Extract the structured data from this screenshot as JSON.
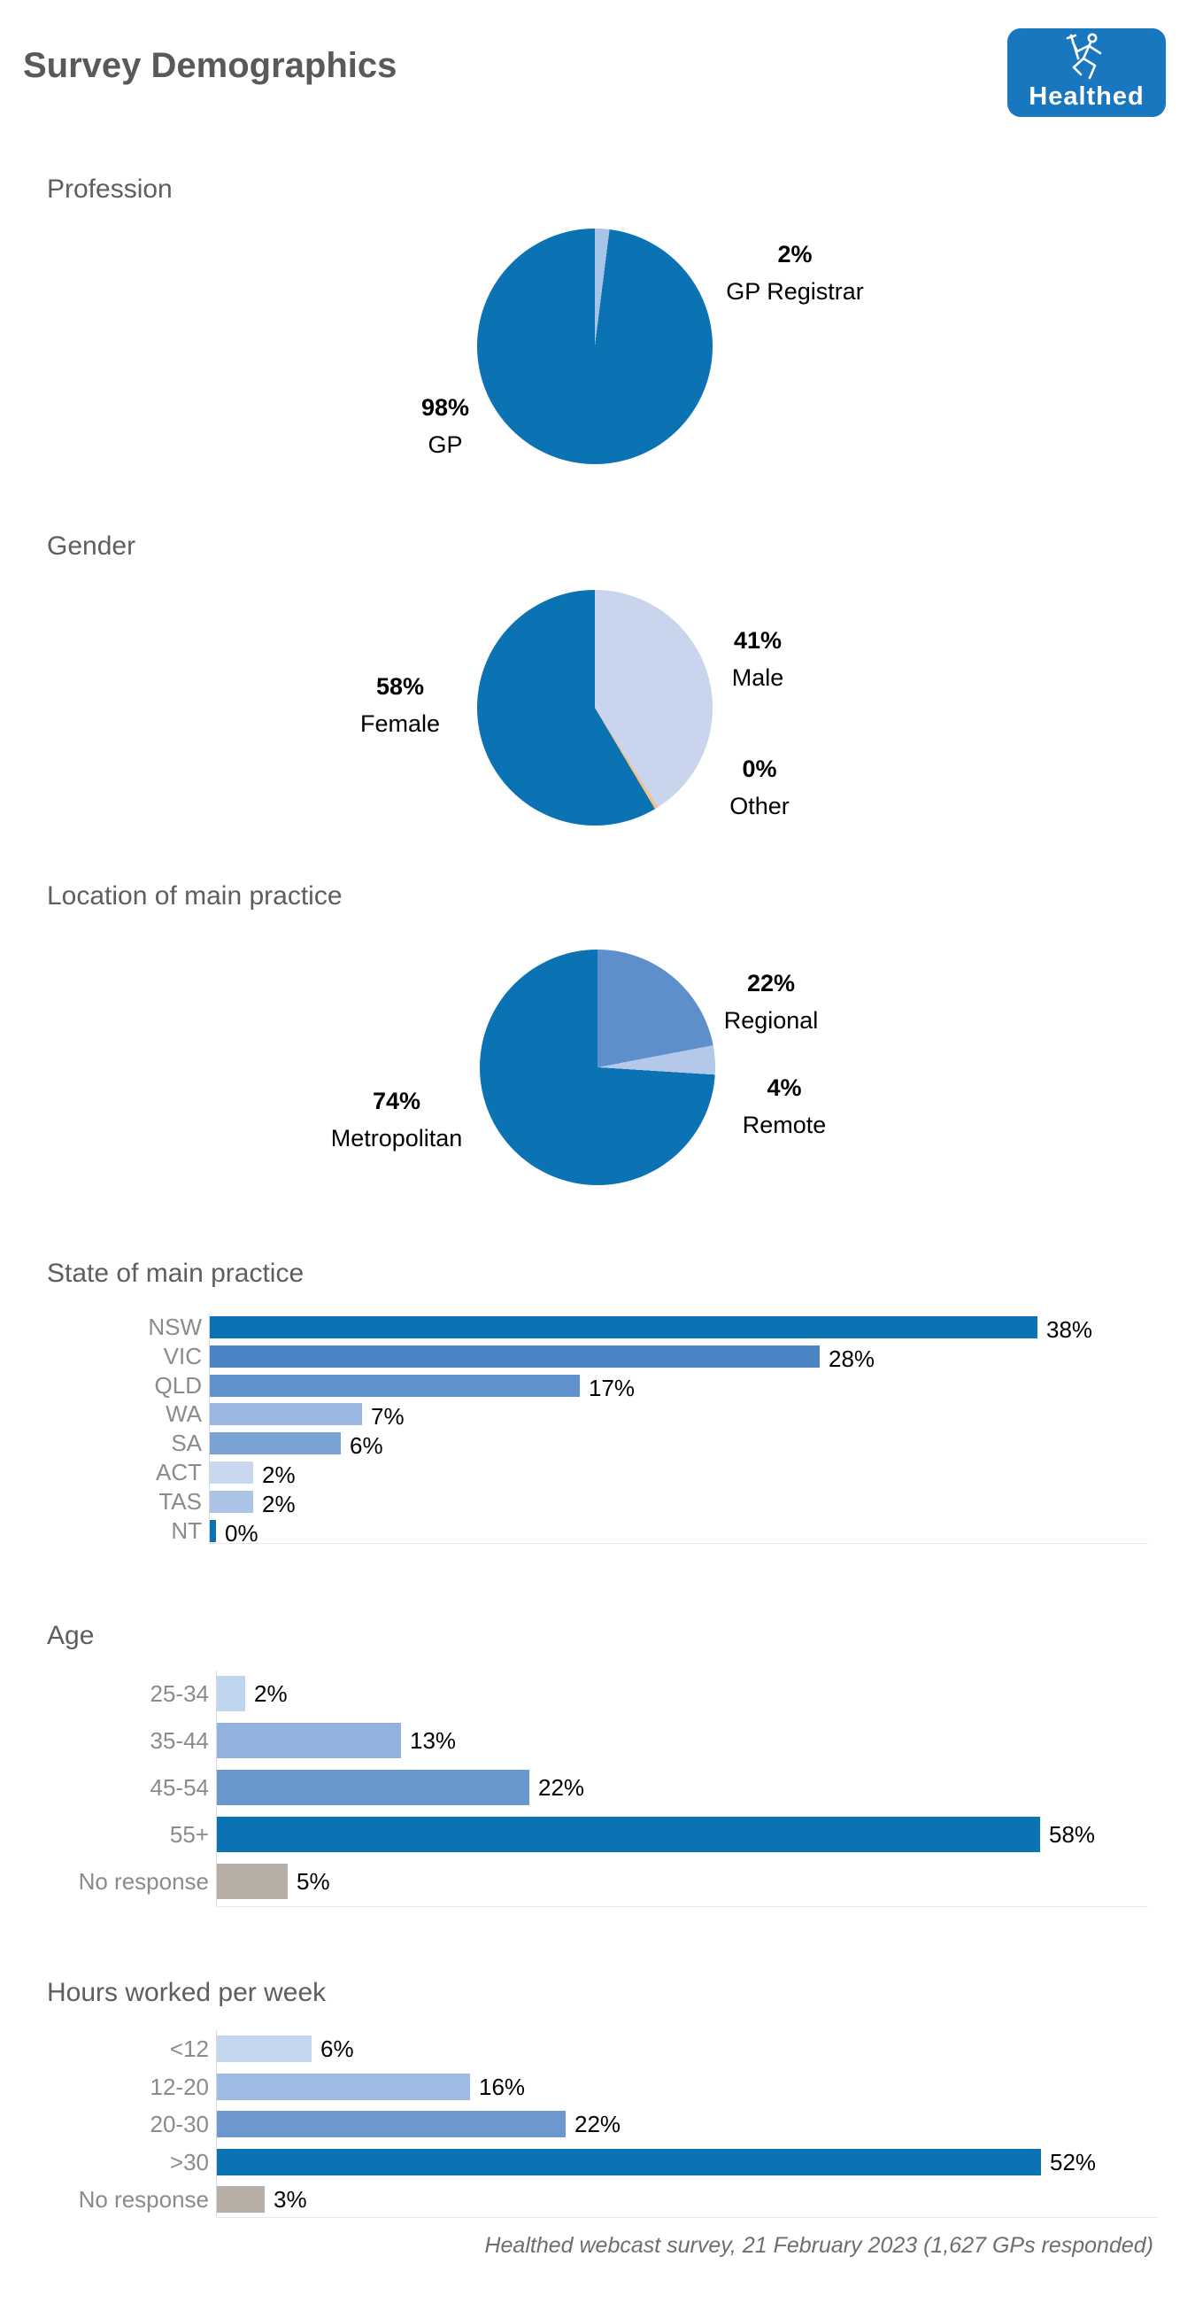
{
  "title": "Survey Demographics",
  "logo": {
    "brand": "Healthed"
  },
  "footer": {
    "text": "Healthed webcast survey, 21 February 2023 (1,627 GPs responded)"
  },
  "palette": {
    "dark_blue": "#0b72b4",
    "heading_gray": "#5e5e5e",
    "label_gray": "#8b8b8b",
    "no_response_gray": "#b7aea6",
    "other_orange": "#f5c184"
  },
  "chart_data": [
    {
      "type": "pie",
      "title": "Profession",
      "slices": [
        {
          "label": "GP Registrar",
          "value": 2,
          "pct": "2%",
          "color": "#a6c3e8"
        },
        {
          "label": "GP",
          "value": 98,
          "pct": "98%",
          "color": "#0b72b4"
        }
      ]
    },
    {
      "type": "pie",
      "title": "Gender",
      "slices": [
        {
          "label": "Male",
          "value": 41,
          "pct": "41%",
          "color": "#c8d5ec"
        },
        {
          "label": "Other",
          "value": 0,
          "pct": "0%",
          "color": "#f5c184"
        },
        {
          "label": "Female",
          "value": 58,
          "pct": "58%",
          "color": "#0b72b4"
        }
      ]
    },
    {
      "type": "pie",
      "title": "Location of main practice",
      "slices": [
        {
          "label": "Regional",
          "value": 22,
          "pct": "22%",
          "color": "#5e8fca"
        },
        {
          "label": "Remote",
          "value": 4,
          "pct": "4%",
          "color": "#b4c8ea"
        },
        {
          "label": "Metropolitan",
          "value": 74,
          "pct": "74%",
          "color": "#0b72b4"
        }
      ]
    },
    {
      "type": "bar",
      "title": "State of main practice",
      "xlim": [
        0,
        38
      ],
      "rows": [
        {
          "label": "NSW",
          "value": 38,
          "pct": "38%",
          "color": "#0b72b4"
        },
        {
          "label": "VIC",
          "value": 28,
          "pct": "28%",
          "color": "#4a84c5"
        },
        {
          "label": "QLD",
          "value": 17,
          "pct": "17%",
          "color": "#6292cd"
        },
        {
          "label": "WA",
          "value": 7,
          "pct": "7%",
          "color": "#9bb6e1"
        },
        {
          "label": "SA",
          "value": 6,
          "pct": "6%",
          "color": "#7ba2d5"
        },
        {
          "label": "ACT",
          "value": 2,
          "pct": "2%",
          "color": "#c9d8ef"
        },
        {
          "label": "TAS",
          "value": 2,
          "pct": "2%",
          "color": "#aac3e7"
        },
        {
          "label": "NT",
          "value": 0,
          "pct": "0%",
          "color": "#0b72b4"
        }
      ]
    },
    {
      "type": "bar",
      "title": "Age",
      "xlim": [
        0,
        58
      ],
      "rows": [
        {
          "label": "25-34",
          "value": 2,
          "pct": "2%",
          "color": "#bfd4ee"
        },
        {
          "label": "35-44",
          "value": 13,
          "pct": "13%",
          "color": "#93b2de"
        },
        {
          "label": "45-54",
          "value": 22,
          "pct": "22%",
          "color": "#6b97cf"
        },
        {
          "label": "55+",
          "value": 58,
          "pct": "58%",
          "color": "#0b72b4"
        },
        {
          "label": "No response",
          "value": 5,
          "pct": "5%",
          "color": "#b7aea6"
        }
      ]
    },
    {
      "type": "bar",
      "title": "Hours worked per week",
      "xlim": [
        0,
        52
      ],
      "rows": [
        {
          "label": "<12",
          "value": 6,
          "pct": "6%",
          "color": "#c4d7ef"
        },
        {
          "label": "12-20",
          "value": 16,
          "pct": "16%",
          "color": "#9dbbe3"
        },
        {
          "label": "20-30",
          "value": 22,
          "pct": "22%",
          "color": "#6d98cf"
        },
        {
          "label": ">30",
          "value": 52,
          "pct": "52%",
          "color": "#0b72b4"
        },
        {
          "label": "No response",
          "value": 3,
          "pct": "3%",
          "color": "#b7aea6"
        }
      ]
    }
  ]
}
